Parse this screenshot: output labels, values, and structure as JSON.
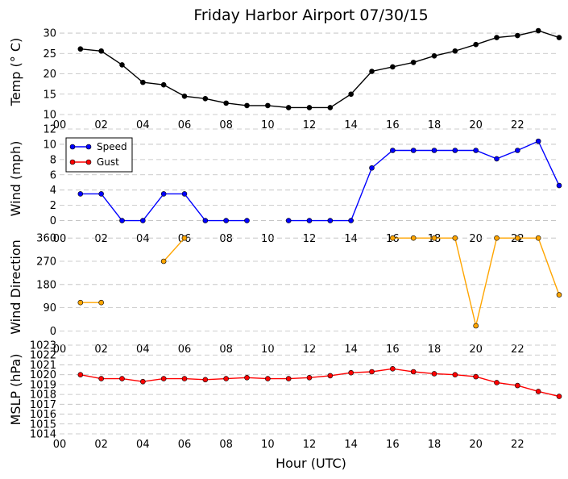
{
  "title": "Friday Harbor Airport 07/30/15",
  "xlabel": "Hour (UTC)",
  "x_tick_labels": [
    "00",
    "02",
    "04",
    "06",
    "08",
    "10",
    "12",
    "14",
    "16",
    "18",
    "20",
    "22"
  ],
  "chart_data": [
    {
      "type": "line",
      "name": "temp",
      "ylabel": "Temp ($^\\circ$C)",
      "ylabel_display": "Temp (° C)",
      "ylim": [
        10,
        31
      ],
      "yticks": [
        10,
        15,
        20,
        25,
        30
      ],
      "grid": true,
      "x": [
        1,
        2,
        3,
        4,
        5,
        6,
        7,
        8,
        9,
        10,
        11,
        12,
        13,
        14,
        15,
        16,
        17,
        18,
        19,
        20,
        21,
        22,
        23,
        24
      ],
      "series": [
        {
          "values": [
            26.1,
            25.6,
            22.2,
            17.9,
            17.3,
            14.5,
            13.9,
            12.8,
            12.2,
            12.2,
            11.7,
            11.7,
            11.7,
            15.0,
            20.6,
            21.7,
            22.8,
            24.4,
            25.6,
            27.2,
            28.9,
            29.4,
            30.6,
            28.9
          ],
          "color": "#000000"
        }
      ]
    },
    {
      "type": "line",
      "name": "wind",
      "ylabel": "Wind (mph)",
      "ylim": [
        -1,
        12
      ],
      "yticks": [
        0,
        2,
        4,
        6,
        8,
        10,
        12
      ],
      "grid": true,
      "legend_position": "upper-left",
      "x": [
        1,
        2,
        3,
        4,
        5,
        6,
        7,
        8,
        9,
        10,
        11,
        12,
        13,
        14,
        15,
        16,
        17,
        18,
        19,
        20,
        21,
        22,
        23,
        24
      ],
      "series": [
        {
          "name": "Speed",
          "color": "#0000ff",
          "values": [
            3.5,
            3.5,
            0,
            0,
            3.5,
            3.5,
            0,
            0,
            0,
            null,
            0,
            0,
            0,
            0,
            6.9,
            9.2,
            9.2,
            9.2,
            9.2,
            9.2,
            8.1,
            9.2,
            10.4,
            4.6
          ]
        },
        {
          "name": "Gust",
          "color": "#ff0000",
          "values": [
            null,
            null,
            null,
            null,
            null,
            null,
            null,
            null,
            null,
            null,
            null,
            null,
            null,
            null,
            null,
            null,
            null,
            null,
            null,
            null,
            null,
            null,
            null,
            null
          ]
        }
      ]
    },
    {
      "type": "line",
      "name": "wind-direction",
      "ylabel": "Wind Direction",
      "ylim": [
        -30,
        370
      ],
      "yticks": [
        0,
        90,
        180,
        270,
        360
      ],
      "grid": true,
      "x": [
        1,
        2,
        3,
        4,
        5,
        6,
        7,
        8,
        9,
        10,
        11,
        12,
        13,
        14,
        15,
        16,
        17,
        18,
        19,
        20,
        21,
        22,
        23,
        24
      ],
      "series": [
        {
          "color": "#ffa500",
          "values": [
            110,
            110,
            null,
            null,
            270,
            360,
            null,
            null,
            null,
            null,
            null,
            null,
            null,
            null,
            null,
            360,
            360,
            360,
            360,
            20,
            360,
            360,
            360,
            140
          ]
        }
      ]
    },
    {
      "type": "line",
      "name": "mslp",
      "ylabel": "MSLP (hPa)",
      "ylim": [
        1014,
        1023
      ],
      "yticks": [
        1014,
        1015,
        1016,
        1017,
        1018,
        1019,
        1020,
        1021,
        1022,
        1023
      ],
      "grid": true,
      "x": [
        1,
        2,
        3,
        4,
        5,
        6,
        7,
        8,
        9,
        10,
        11,
        12,
        13,
        14,
        15,
        16,
        17,
        18,
        19,
        20,
        21,
        22,
        23,
        24
      ],
      "series": [
        {
          "color": "#ff0000",
          "values": [
            1020.0,
            1019.6,
            1019.6,
            1019.3,
            1019.6,
            1019.6,
            1019.5,
            1019.6,
            1019.7,
            1019.6,
            1019.6,
            1019.7,
            1019.9,
            1020.2,
            1020.3,
            1020.6,
            1020.3,
            1020.1,
            1020.0,
            1019.8,
            1019.2,
            1018.9,
            1018.3,
            1017.8
          ]
        }
      ]
    }
  ]
}
